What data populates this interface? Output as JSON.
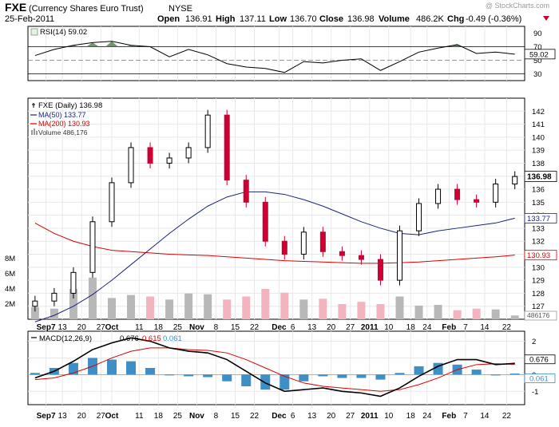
{
  "header": {
    "symbol": "FXE",
    "name": "(Currency Shares Euro Trust)",
    "exchange": "NYSE",
    "date": "25-Feb-2011",
    "open_label": "Open",
    "open": "136.91",
    "high_label": "High",
    "high": "137.11",
    "low_label": "Low",
    "low": "136.70",
    "close_label": "Close",
    "close": "136.98",
    "volume_label": "Volume",
    "volume": "486.2K",
    "chg_label": "Chg",
    "chg": "-0.49 (-0.36%)",
    "watermark": "@ StockCharts.com"
  },
  "colors": {
    "up": "#000000",
    "down": "#cc0033",
    "ma50": "#1a237e",
    "ma200": "#dd0000",
    "vol_up": "#b8b8b8",
    "vol_down": "#f4b4bf",
    "rsi_fill": "#4d7c4d",
    "macd_hist": "#3d8fc6",
    "macd_line": "#000000",
    "signal_line": "#dd0000",
    "grid": "#e8e8e8",
    "border": "#000000"
  },
  "chart_data": [
    {
      "type": "line",
      "panel": "rsi",
      "legend_label": "RSI(14) 59.02",
      "current_value": "59.02",
      "ylim": [
        20,
        100
      ],
      "yticks": [
        30,
        50,
        70,
        90
      ],
      "reference_lines": [
        30,
        70
      ],
      "x": [
        "2010-09-03",
        "2010-09-10",
        "2010-09-17",
        "2010-09-24",
        "2010-10-01",
        "2010-10-08",
        "2010-10-15",
        "2010-10-22",
        "2010-10-29",
        "2010-11-05",
        "2010-11-12",
        "2010-11-19",
        "2010-11-26",
        "2010-12-03",
        "2010-12-10",
        "2010-12-17",
        "2010-12-24",
        "2010-12-31",
        "2011-01-07",
        "2011-01-14",
        "2011-01-21",
        "2011-01-28",
        "2011-02-04",
        "2011-02-11",
        "2011-02-18",
        "2011-02-25"
      ],
      "values": [
        57,
        66,
        72,
        76,
        78,
        72,
        70,
        55,
        66,
        58,
        45,
        40,
        38,
        32,
        48,
        46,
        50,
        52,
        35,
        48,
        62,
        68,
        73,
        60,
        62,
        59
      ]
    },
    {
      "type": "candlestick",
      "panel": "price",
      "legend": [
        "FXE (Daily) 136.98",
        "MA(50) 133.77",
        "MA(200) 130.93",
        "Volume 486,176"
      ],
      "yticks": [
        127,
        128,
        129,
        130,
        131,
        132,
        133,
        134,
        135,
        136,
        137,
        138,
        139,
        140,
        141,
        142
      ],
      "ylim": [
        126,
        143
      ],
      "last_price": "136.98",
      "ma50_last": "133.77",
      "ma200_last": "130.93",
      "volume_ticks": [
        "2M",
        "4M",
        "6M",
        "8M"
      ],
      "volume_last": "486176",
      "x": [
        "2010-09-03",
        "2010-09-10",
        "2010-09-17",
        "2010-09-24",
        "2010-10-01",
        "2010-10-08",
        "2010-10-15",
        "2010-10-22",
        "2010-10-29",
        "2010-11-05",
        "2010-11-12",
        "2010-11-19",
        "2010-11-26",
        "2010-12-03",
        "2010-12-10",
        "2010-12-17",
        "2010-12-24",
        "2010-12-31",
        "2011-01-07",
        "2011-01-14",
        "2011-01-21",
        "2011-01-28",
        "2011-02-04",
        "2011-02-11",
        "2011-02-18",
        "2011-02-25"
      ],
      "close": [
        127.4,
        128.0,
        129.6,
        133.5,
        136.5,
        139.2,
        138.0,
        138.4,
        139.2,
        141.7,
        136.7,
        135.0,
        132.0,
        131.0,
        132.7,
        131.2,
        130.9,
        130.6,
        129.0,
        132.8,
        134.9,
        136.0,
        135.2,
        135.0,
        136.4,
        136.98
      ],
      "ma50": [
        125.8,
        126.3,
        127.0,
        127.9,
        129.0,
        130.2,
        131.4,
        132.6,
        133.7,
        134.7,
        135.4,
        135.8,
        135.8,
        135.6,
        135.2,
        134.7,
        134.1,
        133.5,
        133.0,
        132.6,
        132.5,
        132.8,
        133.0,
        133.2,
        133.4,
        133.77
      ],
      "ma200": [
        133.4,
        132.6,
        132.0,
        131.6,
        131.3,
        131.2,
        131.1,
        131.0,
        130.95,
        130.9,
        130.8,
        130.7,
        130.6,
        130.5,
        130.45,
        130.4,
        130.35,
        130.3,
        130.3,
        130.35,
        130.4,
        130.5,
        130.6,
        130.7,
        130.8,
        130.93
      ],
      "volume_millions": [
        1.6,
        1.4,
        4.0,
        5.5,
        2.8,
        3.2,
        3.0,
        2.6,
        3.4,
        3.3,
        2.6,
        3.0,
        4.0,
        3.5,
        2.6,
        2.7,
        2.0,
        2.3,
        2.0,
        3.0,
        1.8,
        1.9,
        1.2,
        1.4,
        1.3,
        0.5
      ]
    },
    {
      "type": "line",
      "panel": "macd",
      "legend": {
        "label": "MACD(12,26,9)",
        "macd": "0.676",
        "signal": "0.615",
        "hist": "0.061"
      },
      "yticks": [
        -1,
        0,
        1,
        2
      ],
      "ylim": [
        -1.8,
        2.6
      ],
      "x": [
        "2010-09-03",
        "2010-09-10",
        "2010-09-17",
        "2010-09-24",
        "2010-10-01",
        "2010-10-08",
        "2010-10-15",
        "2010-10-22",
        "2010-10-29",
        "2010-11-05",
        "2010-11-12",
        "2010-11-19",
        "2010-11-26",
        "2010-12-03",
        "2010-12-10",
        "2010-12-17",
        "2010-12-24",
        "2010-12-31",
        "2011-01-07",
        "2011-01-14",
        "2011-01-21",
        "2011-01-28",
        "2011-02-04",
        "2011-02-11",
        "2011-02-18",
        "2011-02-25"
      ],
      "macd": [
        -0.2,
        0.2,
        0.8,
        1.5,
        1.9,
        2.2,
        2.0,
        1.6,
        1.4,
        1.3,
        0.9,
        0.2,
        -0.5,
        -1.0,
        -0.9,
        -0.8,
        -1.0,
        -1.1,
        -1.3,
        -0.8,
        -0.1,
        0.5,
        0.9,
        0.9,
        0.6,
        0.676
      ],
      "signal": [
        -0.3,
        -0.2,
        0.1,
        0.5,
        1.0,
        1.4,
        1.6,
        1.6,
        1.5,
        1.45,
        1.3,
        0.9,
        0.4,
        -0.1,
        -0.5,
        -0.7,
        -0.8,
        -0.9,
        -1.0,
        -0.9,
        -0.6,
        -0.2,
        0.3,
        0.6,
        0.65,
        0.615
      ],
      "histogram": [
        0.1,
        0.4,
        0.7,
        1.0,
        0.9,
        0.8,
        0.4,
        0.0,
        -0.1,
        -0.15,
        -0.4,
        -0.7,
        -0.9,
        -0.9,
        -0.4,
        -0.1,
        -0.2,
        -0.2,
        -0.3,
        0.1,
        0.5,
        0.7,
        0.6,
        0.3,
        -0.05,
        0.061
      ]
    }
  ],
  "x_axis_labels": [
    "Sep7",
    "13",
    "20",
    "27",
    "Oct",
    "11",
    "18",
    "25",
    "Nov",
    "8",
    "15",
    "22",
    "Dec",
    "6",
    "13",
    "20",
    "27",
    "2011",
    "10",
    "18",
    "24",
    "Feb",
    "7",
    "14",
    "22"
  ],
  "x_axis_bold": [
    "Sep7",
    "Oct",
    "Nov",
    "Dec",
    "2011",
    "Feb"
  ],
  "x_axis_dates": [
    "2010-09-07",
    "2010-09-13",
    "2010-09-20",
    "2010-09-27",
    "2010-10-01",
    "2010-10-11",
    "2010-10-18",
    "2010-10-25",
    "2010-11-01",
    "2010-11-08",
    "2010-11-15",
    "2010-11-22",
    "2010-12-01",
    "2010-12-06",
    "2010-12-13",
    "2010-12-20",
    "2010-12-27",
    "2011-01-03",
    "2011-01-10",
    "2011-01-18",
    "2011-01-24",
    "2011-02-01",
    "2011-02-07",
    "2011-02-14",
    "2011-02-22"
  ]
}
